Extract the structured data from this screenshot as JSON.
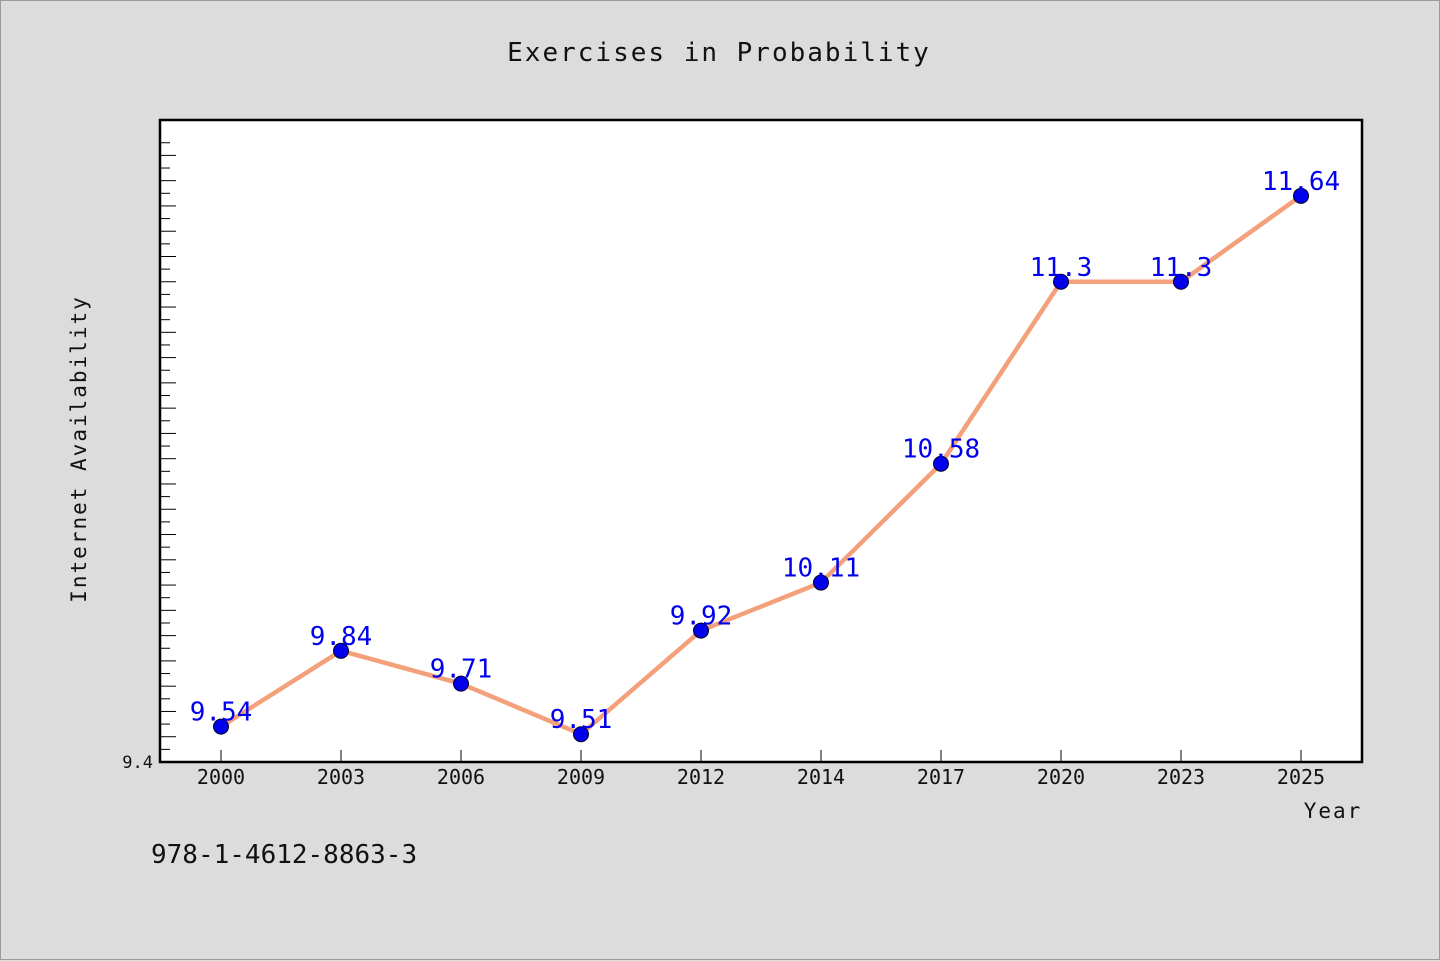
{
  "page": {
    "isbn": "978-1-4612-8863-3",
    "background": "#dcdcdc"
  },
  "chart_data": {
    "type": "line",
    "title": "Exercises in Probability",
    "xlabel": "Year",
    "ylabel": "Internet Availability",
    "categories": [
      "2000",
      "2003",
      "2006",
      "2009",
      "2012",
      "2014",
      "2017",
      "2020",
      "2023",
      "2025"
    ],
    "series": [
      {
        "values": [
          9.54,
          9.84,
          9.71,
          9.51,
          9.92,
          10.11,
          10.58,
          11.3,
          11.3,
          11.64
        ],
        "labels": [
          "9.54",
          "9.84",
          "9.71",
          "9.51",
          "9.92",
          "10.11",
          "10.58",
          "11.3",
          "11.3",
          "11.64"
        ],
        "line_color": "#f4a07a",
        "marker_color": "#0000ee"
      }
    ],
    "ylim": [
      9.4,
      11.94
    ],
    "y_tick_labels": [
      "9.4"
    ],
    "grid": false,
    "legend": "none"
  }
}
